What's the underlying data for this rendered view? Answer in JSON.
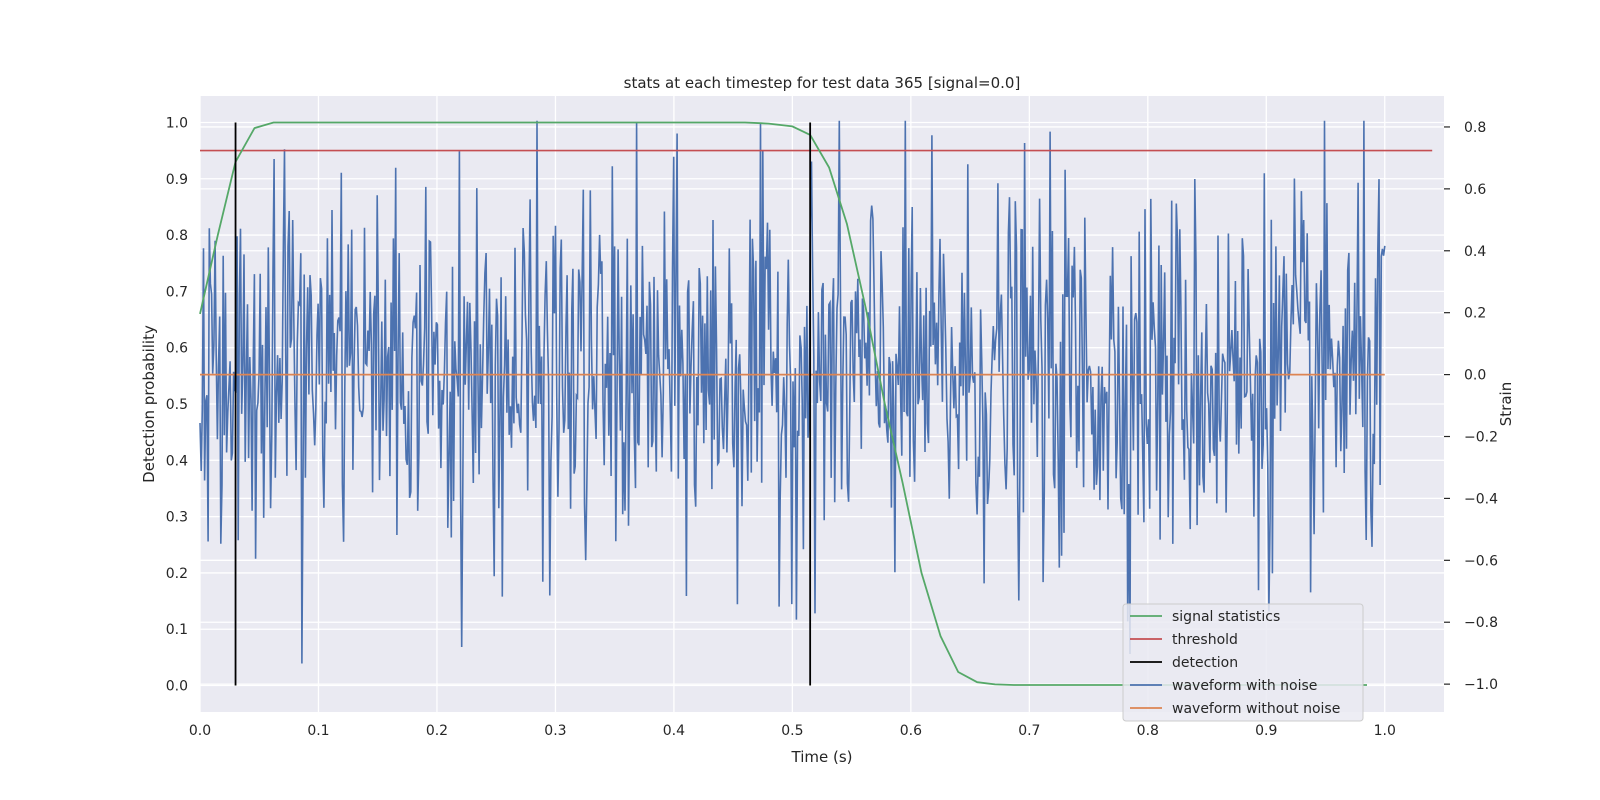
{
  "chart_data": {
    "type": "line",
    "title": "stats at each timestep for test data 365 [signal=0.0]",
    "xlabel": "Time (s)",
    "ylabel": "Detection probability",
    "y2label": "Strain",
    "xlim": [
      0.0,
      1.05
    ],
    "ylim": [
      -0.047,
      1.047
    ],
    "y2lim": [
      -1.09,
      0.9
    ],
    "xticks": [
      "0.0",
      "0.1",
      "0.2",
      "0.3",
      "0.4",
      "0.5",
      "0.6",
      "0.7",
      "0.8",
      "0.9",
      "1.0"
    ],
    "yticks": [
      "0.0",
      "0.1",
      "0.2",
      "0.3",
      "0.4",
      "0.5",
      "0.6",
      "0.7",
      "0.8",
      "0.9",
      "1.0"
    ],
    "y2ticks": [
      "−1.0",
      "−0.8",
      "−0.6",
      "−0.4",
      "−0.2",
      "0.0",
      "0.2",
      "0.4",
      "0.6",
      "0.8"
    ],
    "grid": true,
    "legend_position": "lower right",
    "series": [
      {
        "name": "signal statistics",
        "color": "#55a868",
        "axis": "left",
        "x": [
          0.0,
          0.015,
          0.03,
          0.046,
          0.062,
          0.078,
          0.1,
          0.2,
          0.3,
          0.4,
          0.46,
          0.48,
          0.5,
          0.515,
          0.531,
          0.546,
          0.562,
          0.578,
          0.593,
          0.609,
          0.625,
          0.64,
          0.656,
          0.671,
          0.687,
          0.75,
          0.85,
          0.95,
          0.985
        ],
        "y": [
          0.66,
          0.8,
          0.93,
          0.99,
          1.0,
          1.0,
          1.0,
          1.0,
          1.0,
          1.0,
          1.0,
          0.998,
          0.993,
          0.978,
          0.92,
          0.82,
          0.67,
          0.5,
          0.36,
          0.2,
          0.088,
          0.024,
          0.006,
          0.002,
          0.001,
          0.001,
          0.001,
          0.001,
          0.001
        ]
      },
      {
        "name": "threshold",
        "color": "#c44e52",
        "axis": "left",
        "x": [
          0.0,
          1.04
        ],
        "y": [
          0.95,
          0.95
        ]
      },
      {
        "name": "detection",
        "color": "#000000",
        "axis": "left",
        "x_positions": [
          0.03,
          0.515
        ],
        "y_range": [
          0.0,
          1.0
        ]
      },
      {
        "name": "waveform with noise",
        "color": "#4c72b0",
        "axis": "right",
        "x_range": [
          0.0,
          1.0
        ],
        "samples": 1024,
        "amplitude_range": [
          -0.95,
          0.82
        ],
        "std_approx": 0.3,
        "description": "noisy strain samples"
      },
      {
        "name": "waveform without noise",
        "color": "#dd8452",
        "axis": "right",
        "x": [
          0.0,
          1.0
        ],
        "y": [
          0.0,
          0.0
        ]
      }
    ]
  },
  "colors": {
    "background": "#ffffff",
    "plot_area": "#eaeaf2",
    "grid": "#ffffff",
    "text": "#262626"
  }
}
